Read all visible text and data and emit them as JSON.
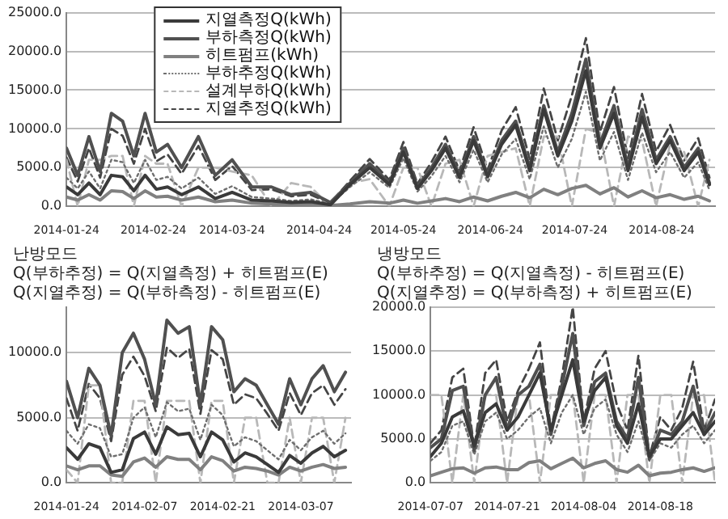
{
  "chart_data": [
    {
      "type": "line",
      "x": [
        "2014-01-24",
        "2014-01-28",
        "2014-02-01",
        "2014-02-05",
        "2014-02-09",
        "2014-02-13",
        "2014-02-17",
        "2014-02-21",
        "2014-02-25",
        "2014-03-01",
        "2014-03-06",
        "2014-03-12",
        "2014-03-18",
        "2014-03-24",
        "2014-03-31",
        "2014-04-07",
        "2014-04-14",
        "2014-04-21",
        "2014-04-28",
        "2014-05-05",
        "2014-05-12",
        "2014-05-19",
        "2014-05-24",
        "2014-05-29",
        "2014-06-03",
        "2014-06-08",
        "2014-06-13",
        "2014-06-18",
        "2014-06-23",
        "2014-06-28",
        "2014-07-03",
        "2014-07-08",
        "2014-07-13",
        "2014-07-18",
        "2014-07-23",
        "2014-07-28",
        "2014-08-02",
        "2014-08-07",
        "2014-08-12",
        "2014-08-17",
        "2014-08-22",
        "2014-08-27",
        "2014-09-01",
        "2014-09-06",
        "2014-09-10"
      ],
      "xlim": [
        "2014-01-24",
        "2014-09-12"
      ],
      "xticks": [
        "2014-01-24",
        "2014-02-24",
        "2014-03-24",
        "2014-04-24",
        "2014-05-24",
        "2014-06-24",
        "2014-07-24",
        "2014-08-24"
      ],
      "ylim": [
        0,
        25000
      ],
      "yticks": [
        {
          "value": 0,
          "label": "0.0"
        },
        {
          "value": 5000,
          "label": "5000.0"
        },
        {
          "value": 10000,
          "label": "10000.0"
        },
        {
          "value": 15000,
          "label": "15000.0"
        },
        {
          "value": 20000,
          "label": "20000.0"
        },
        {
          "value": 25000,
          "label": "25000.0"
        }
      ],
      "grid": "y",
      "legend": "top",
      "marker": "none",
      "series": [
        {
          "name": "지열측정Q(kWh)",
          "color": "#3a3a3a",
          "line_style": "solid",
          "values": [
            2500,
            1500,
            3000,
            1500,
            4000,
            3800,
            2000,
            4000,
            2200,
            2500,
            1500,
            2500,
            1000,
            1800,
            800,
            700,
            500,
            600,
            200,
            2800,
            5000,
            2800,
            7000,
            2300,
            4600,
            7500,
            3700,
            8500,
            3800,
            8000,
            10500,
            4600,
            12500,
            6500,
            11000,
            17500,
            7500,
            12000,
            4600,
            11500,
            5500,
            8500,
            4600,
            7000,
            2800
          ]
        },
        {
          "name": "부하측정Q(kWh)",
          "color": "#505050",
          "line_style": "solid",
          "values": [
            7500,
            4000,
            9000,
            4500,
            12000,
            11000,
            6500,
            12000,
            7000,
            8000,
            5000,
            9000,
            4000,
            6000,
            2500,
            2500,
            1500,
            1800,
            500,
            3000,
            5500,
            3000,
            7500,
            2500,
            5000,
            8000,
            4000,
            9000,
            4000,
            8500,
            11000,
            5000,
            13000,
            7000,
            12000,
            19000,
            8000,
            13000,
            5000,
            12500,
            6000,
            9000,
            5000,
            7500,
            3000
          ]
        },
        {
          "name": "히트펌프(kWh)",
          "color": "#808080",
          "line_style": "solid",
          "values": [
            1200,
            800,
            1500,
            800,
            2000,
            1900,
            1000,
            2000,
            1200,
            1300,
            800,
            1200,
            600,
            800,
            400,
            300,
            200,
            300,
            100,
            300,
            600,
            400,
            800,
            400,
            700,
            1000,
            600,
            1200,
            700,
            1300,
            1800,
            1100,
            2200,
            1500,
            2300,
            2700,
            1600,
            2400,
            1200,
            2000,
            1100,
            1500,
            900,
            1300,
            700
          ]
        },
        {
          "name": "부하추정Q(kWh)",
          "color": "#6e6e6e",
          "line_style": "dotted",
          "values": [
            3700,
            2300,
            4500,
            2300,
            6000,
            5700,
            3000,
            6000,
            3400,
            3800,
            2300,
            3700,
            1600,
            2600,
            1200,
            1000,
            700,
            900,
            300,
            2500,
            4400,
            2400,
            6200,
            1900,
            3900,
            6500,
            3100,
            7300,
            3100,
            6700,
            8700,
            3500,
            10300,
            5000,
            8700,
            14800,
            5900,
            9600,
            3400,
            9500,
            4400,
            7000,
            3700,
            5700,
            2100
          ]
        },
        {
          "name": "설계부하Q(kWh)",
          "color": "#b8b8b8",
          "line_style": "dashed",
          "values": [
            6000,
            0,
            6000,
            6000,
            6500,
            6500,
            0,
            6500,
            5500,
            5500,
            0,
            5000,
            5000,
            4500,
            4000,
            0,
            3000,
            2500,
            0,
            3000,
            3500,
            0,
            5000,
            5000,
            0,
            5500,
            6000,
            0,
            6500,
            7000,
            7500,
            0,
            9000,
            9000,
            0,
            10000,
            9500,
            0,
            9000,
            8500,
            0,
            8000,
            7000,
            0,
            6000
          ]
        },
        {
          "name": "지열추정Q(kWh)",
          "color": "#454545",
          "line_style": "dashed",
          "values": [
            6300,
            3200,
            7500,
            3700,
            10000,
            9100,
            5500,
            10000,
            5800,
            6700,
            4200,
            7800,
            3400,
            5200,
            2100,
            2200,
            1300,
            1500,
            400,
            3300,
            6100,
            3400,
            8300,
            2900,
            5700,
            9000,
            4600,
            10200,
            4700,
            9800,
            12800,
            6100,
            15200,
            8500,
            14300,
            21700,
            9600,
            15400,
            6200,
            14500,
            7100,
            10500,
            5900,
            8800,
            3700
          ]
        }
      ]
    },
    {
      "type": "line",
      "x": [
        "2014-01-24",
        "2014-01-26",
        "2014-01-28",
        "2014-01-30",
        "2014-02-01",
        "2014-02-03",
        "2014-02-05",
        "2014-02-07",
        "2014-02-09",
        "2014-02-11",
        "2014-02-13",
        "2014-02-15",
        "2014-02-17",
        "2014-02-19",
        "2014-02-21",
        "2014-02-23",
        "2014-02-25",
        "2014-02-27",
        "2014-03-01",
        "2014-03-03",
        "2014-03-05",
        "2014-03-07",
        "2014-03-09",
        "2014-03-11",
        "2014-03-13",
        "2014-03-15"
      ],
      "xlim": [
        "2014-01-24",
        "2014-03-16"
      ],
      "xticks": [
        "2014-01-24",
        "2014-02-07",
        "2014-02-21",
        "2014-03-07"
      ],
      "ylim": [
        0,
        13500
      ],
      "yticks": [
        {
          "value": 0,
          "label": "0.0"
        },
        {
          "value": 5000,
          "label": "5000.0"
        },
        {
          "value": 10000,
          "label": "10000.0"
        }
      ],
      "grid": "y",
      "legend": false,
      "marker": "none",
      "annotations": [
        "난방모드",
        "Q(부하추정) = Q(지열측정) + 히트펌프(E)",
        "Q(지열추정) = Q(부하측정) - 히트펌프(E)"
      ],
      "series": [
        {
          "color": "#3a3a3a",
          "line_style": "solid",
          "values": [
            2700,
            1800,
            3000,
            2700,
            800,
            1000,
            3400,
            3900,
            2200,
            4300,
            3700,
            3800,
            2000,
            3900,
            3300,
            1600,
            2300,
            2000,
            1400,
            800,
            2100,
            1500,
            2300,
            2800,
            2000,
            2500
          ]
        },
        {
          "color": "#505050",
          "line_style": "solid",
          "values": [
            7800,
            5000,
            8800,
            7500,
            3600,
            10000,
            11500,
            9500,
            6000,
            12500,
            11500,
            12000,
            6000,
            12000,
            11000,
            7000,
            8000,
            7500,
            6000,
            4500,
            8000,
            6000,
            8000,
            9000,
            7000,
            8500
          ]
        },
        {
          "color": "#808080",
          "line_style": "solid",
          "values": [
            1300,
            1000,
            1300,
            1300,
            600,
            500,
            1600,
            1900,
            1200,
            2000,
            1800,
            1800,
            1000,
            2000,
            1700,
            900,
            1200,
            1100,
            900,
            600,
            1200,
            900,
            1200,
            1400,
            1100,
            1200
          ]
        },
        {
          "color": "#6e6e6e",
          "line_style": "dotted",
          "values": [
            4000,
            3000,
            4500,
            4200,
            2000,
            2200,
            5000,
            5800,
            3500,
            6200,
            5500,
            5700,
            3300,
            6000,
            5200,
            2800,
            3500,
            3200,
            2500,
            1800,
            3300,
            2500,
            3500,
            4000,
            3000,
            3800
          ]
        },
        {
          "color": "#b8b8b8",
          "line_style": "dashed",
          "values": [
            1000,
            0,
            7500,
            7500,
            0,
            0,
            6300,
            6300,
            0,
            6300,
            6300,
            6300,
            0,
            6300,
            6300,
            0,
            5000,
            5000,
            0,
            0,
            5000,
            0,
            5000,
            5000,
            0,
            5000
          ]
        },
        {
          "color": "#454545",
          "line_style": "dashed",
          "values": [
            6500,
            4000,
            7600,
            6500,
            3200,
            8300,
            9700,
            8200,
            5500,
            10400,
            9600,
            10300,
            5300,
            10200,
            9500,
            6000,
            6800,
            6500,
            5300,
            4000,
            6900,
            5200,
            6900,
            7500,
            6000,
            7200
          ]
        }
      ]
    },
    {
      "type": "line",
      "x": [
        "2014-07-07",
        "2014-07-09",
        "2014-07-11",
        "2014-07-13",
        "2014-07-15",
        "2014-07-17",
        "2014-07-19",
        "2014-07-21",
        "2014-07-23",
        "2014-07-25",
        "2014-07-27",
        "2014-07-29",
        "2014-07-31",
        "2014-08-02",
        "2014-08-04",
        "2014-08-06",
        "2014-08-08",
        "2014-08-10",
        "2014-08-12",
        "2014-08-14",
        "2014-08-16",
        "2014-08-18",
        "2014-08-20",
        "2014-08-22",
        "2014-08-24",
        "2014-08-26",
        "2014-08-28"
      ],
      "xlim": [
        "2014-07-07",
        "2014-08-28"
      ],
      "xticks": [
        "2014-07-07",
        "2014-07-21",
        "2014-08-04",
        "2014-08-18"
      ],
      "ylim": [
        0,
        20000
      ],
      "yticks": [
        {
          "value": 0,
          "label": "0.0"
        },
        {
          "value": 5000,
          "label": "5000.0"
        },
        {
          "value": 10000,
          "label": "10000.0"
        },
        {
          "value": 15000,
          "label": "15000.0"
        },
        {
          "value": 20000,
          "label": "20000.0"
        }
      ],
      "grid": "y",
      "legend": false,
      "marker": "none",
      "annotations": [
        "냉방모드",
        "Q(부하추정) = Q(지열측정) - 히트펌프(E)",
        "Q(지열추정) = Q(부하측정) + 히트펌프(E)"
      ],
      "series": [
        {
          "color": "#3a3a3a",
          "line_style": "solid",
          "values": [
            3000,
            4500,
            7500,
            8200,
            4200,
            8000,
            9000,
            6000,
            7500,
            10000,
            12500,
            6000,
            10000,
            14000,
            7000,
            10500,
            12000,
            6500,
            4500,
            9000,
            3000,
            5000,
            5000,
            6500,
            8000,
            5500,
            7000
          ]
        },
        {
          "color": "#505050",
          "line_style": "solid",
          "values": [
            4000,
            5000,
            10500,
            11000,
            3700,
            10000,
            12000,
            6000,
            10000,
            11000,
            13500,
            5500,
            11000,
            17000,
            6500,
            11500,
            12500,
            7000,
            5000,
            12000,
            2700,
            6000,
            5500,
            7000,
            11000,
            5500,
            8000
          ]
        },
        {
          "color": "#808080",
          "line_style": "solid",
          "values": [
            800,
            1200,
            1600,
            1700,
            1100,
            1700,
            1800,
            1500,
            1500,
            2300,
            2500,
            1600,
            2200,
            2800,
            1700,
            2200,
            2500,
            1500,
            1200,
            2000,
            800,
            1100,
            1200,
            1500,
            1700,
            1300,
            1700
          ]
        },
        {
          "color": "#6e6e6e",
          "line_style": "dotted",
          "values": [
            2500,
            3500,
            6500,
            7000,
            3200,
            7000,
            8000,
            5000,
            6000,
            7500,
            8500,
            4500,
            8000,
            10000,
            5500,
            8500,
            9500,
            5500,
            3500,
            7000,
            2500,
            4500,
            4000,
            5500,
            6500,
            4500,
            6000
          ]
        },
        {
          "color": "#b8b8b8",
          "line_style": "dashed",
          "values": [
            10000,
            10000,
            0,
            10000,
            0,
            10000,
            10000,
            0,
            10000,
            10000,
            0,
            10000,
            10000,
            10000,
            0,
            10000,
            10000,
            0,
            10000,
            10000,
            0,
            10000,
            10000,
            0,
            10000,
            10000,
            0
          ]
        },
        {
          "color": "#454545",
          "line_style": "dashed",
          "values": [
            4500,
            6000,
            12000,
            13000,
            4000,
            12500,
            14000,
            7000,
            10500,
            13000,
            16000,
            6000,
            12000,
            20000,
            7000,
            13000,
            15000,
            9000,
            6000,
            14500,
            3000,
            7500,
            6000,
            8500,
            13800,
            6000,
            9500
          ]
        }
      ]
    }
  ]
}
